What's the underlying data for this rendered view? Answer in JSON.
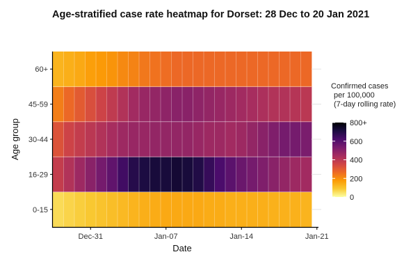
{
  "chart_data": {
    "type": "heatmap",
    "title": "Age-stratified case rate heatmap for Dorset: 28 Dec to 20 Jan 2021",
    "xlabel": "Date",
    "ylabel": "Age group",
    "x_tick_labels": [
      "Dec-31",
      "Jan-07",
      "Jan-14",
      "Jan-21"
    ],
    "x": [
      "2020-12-28",
      "2020-12-29",
      "2020-12-30",
      "2020-12-31",
      "2021-01-01",
      "2021-01-02",
      "2021-01-03",
      "2021-01-04",
      "2021-01-05",
      "2021-01-06",
      "2021-01-07",
      "2021-01-08",
      "2021-01-09",
      "2021-01-10",
      "2021-01-11",
      "2021-01-12",
      "2021-01-13",
      "2021-01-14",
      "2021-01-15",
      "2021-01-16",
      "2021-01-17",
      "2021-01-18",
      "2021-01-19",
      "2021-01-20"
    ],
    "y_categories": [
      "0-15",
      "16-29",
      "30-44",
      "45-59",
      "60+"
    ],
    "values": {
      "0-15": [
        60,
        70,
        80,
        90,
        100,
        110,
        120,
        130,
        140,
        145,
        150,
        150,
        150,
        150,
        145,
        145,
        140,
        140,
        140,
        140,
        135,
        135,
        135,
        130
      ],
      "16-29": [
        380,
        420,
        460,
        500,
        540,
        580,
        640,
        690,
        710,
        720,
        720,
        730,
        720,
        700,
        660,
        620,
        590,
        560,
        540,
        520,
        500,
        480,
        460,
        450
      ],
      "30-44": [
        320,
        360,
        380,
        400,
        420,
        440,
        460,
        470,
        470,
        480,
        480,
        480,
        480,
        470,
        460,
        460,
        450,
        460,
        480,
        500,
        520,
        540,
        540,
        530
      ],
      "45-59": [
        230,
        270,
        300,
        330,
        360,
        390,
        420,
        450,
        470,
        480,
        490,
        500,
        500,
        490,
        480,
        470,
        460,
        450,
        440,
        430,
        420,
        420,
        410,
        400
      ],
      "60+": [
        130,
        140,
        150,
        170,
        180,
        190,
        210,
        220,
        240,
        250,
        260,
        270,
        270,
        270,
        270,
        270,
        270,
        270,
        270,
        270,
        270,
        270,
        270,
        270
      ]
    },
    "legend": {
      "title_lines": [
        "Confirmed cases",
        "per 100,000",
        "(7-day rolling rate)"
      ],
      "ticks": [
        "0",
        "200",
        "400",
        "600",
        "800+"
      ],
      "tick_values": [
        0,
        200,
        400,
        600,
        800
      ],
      "range": [
        0,
        800
      ],
      "colors": [
        "#fcffa4",
        "#f9c932",
        "#fb9b06",
        "#ed6925",
        "#cf4446",
        "#a52c60",
        "#781c6d",
        "#4a0c6b",
        "#1b0c41",
        "#000004"
      ]
    },
    "grid": true,
    "legend_placement": "right"
  }
}
